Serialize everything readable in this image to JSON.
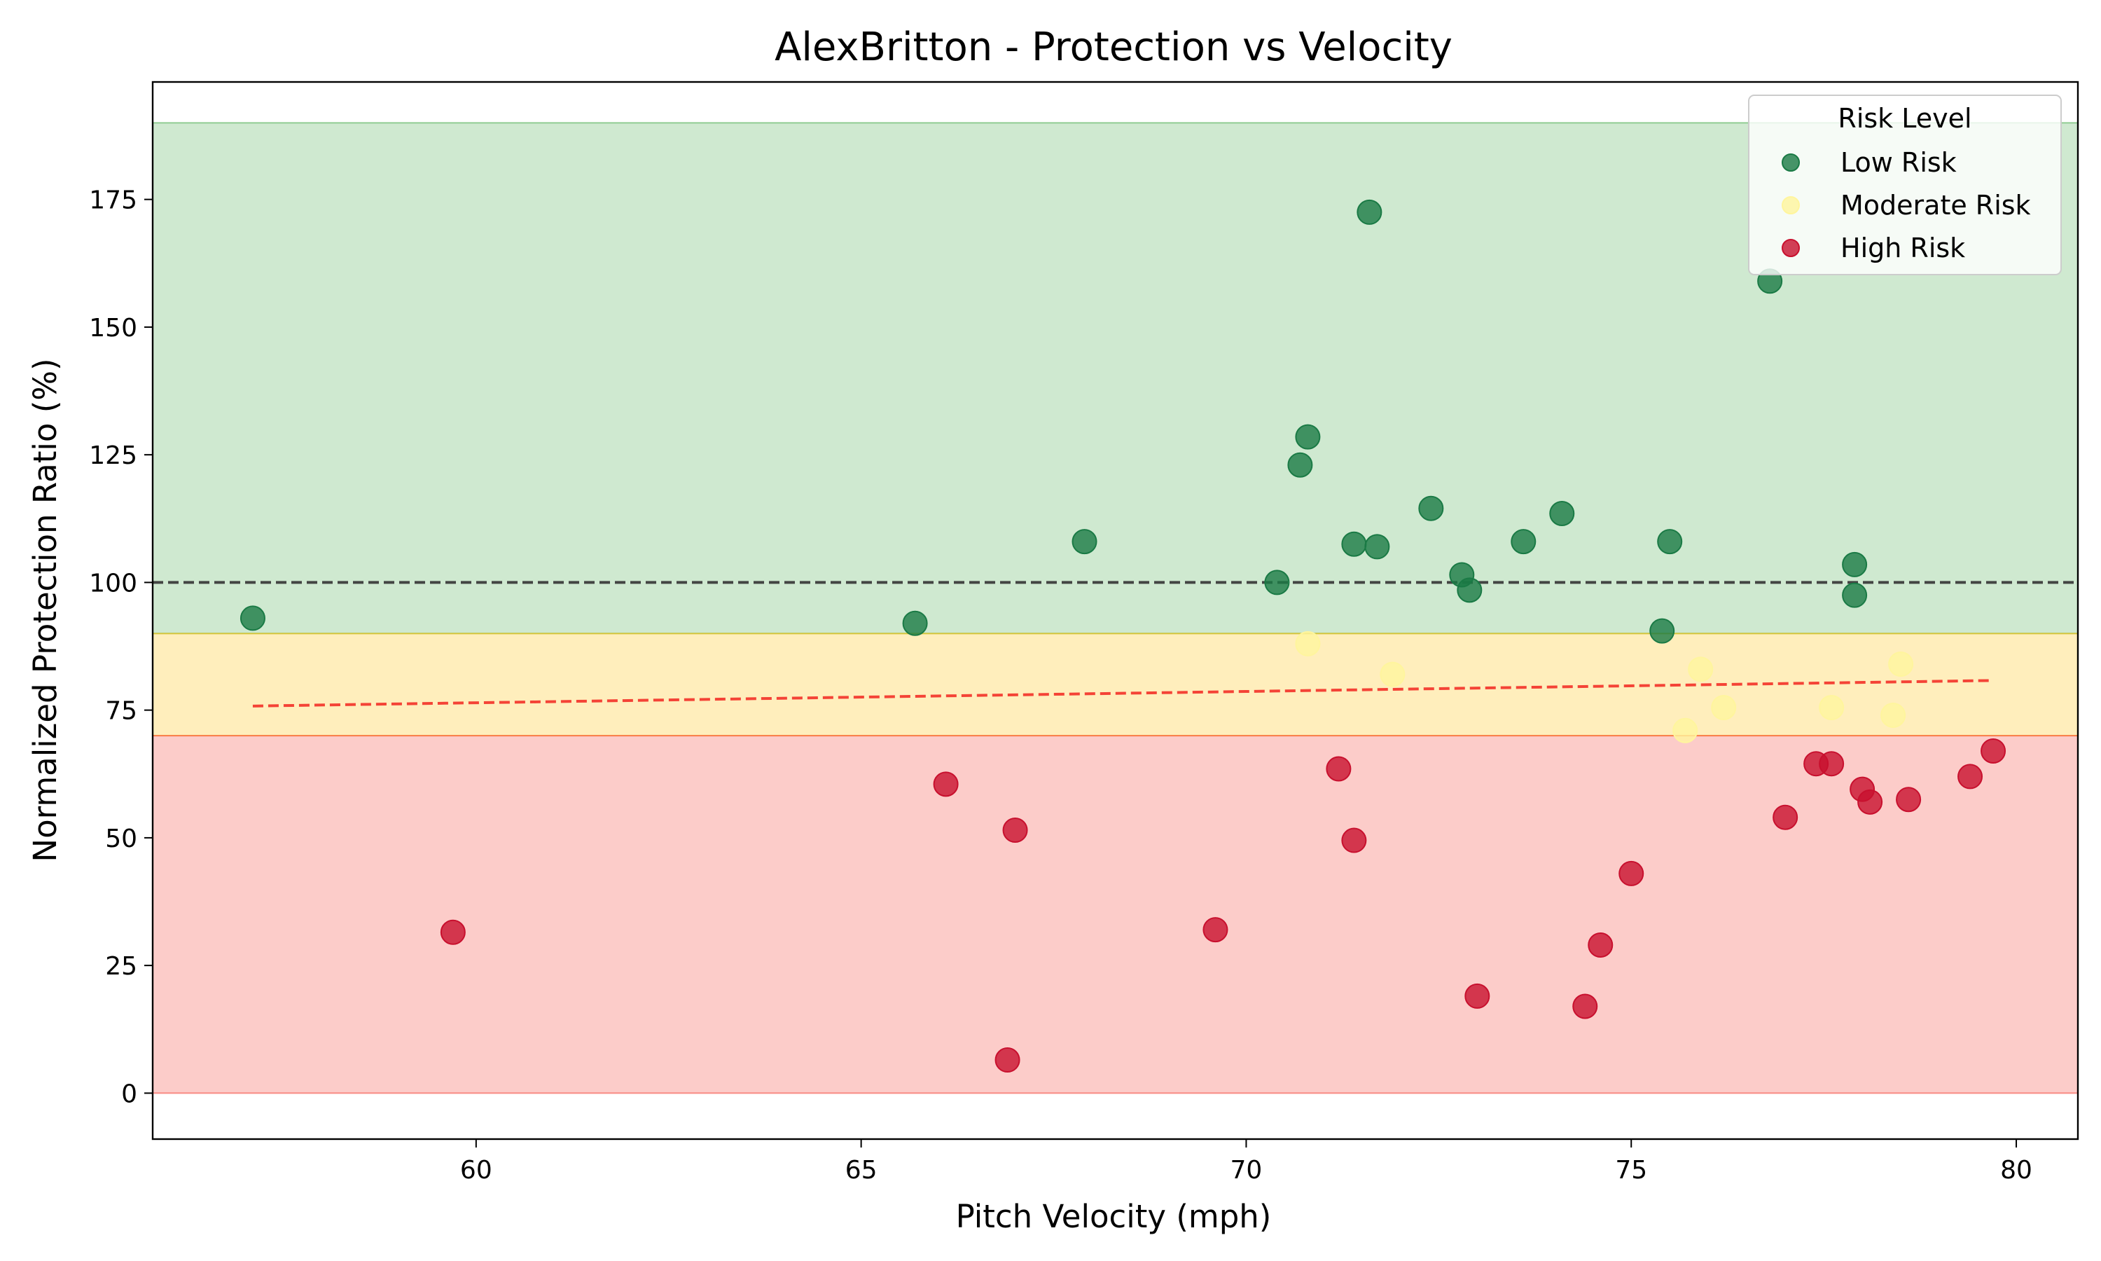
{
  "chart_data": {
    "type": "scatter",
    "title": "AlexBritton - Protection vs Velocity",
    "xlabel": "Pitch Velocity (mph)",
    "ylabel": "Normalized Protection Ratio (%)",
    "xlim": [
      55.8,
      80.8
    ],
    "ylim": [
      -9,
      198
    ],
    "xticks": [
      60,
      65,
      70,
      75,
      80
    ],
    "yticks": [
      0,
      25,
      50,
      75,
      100,
      125,
      150,
      175
    ],
    "grid": false,
    "legend": {
      "title": "Risk Level",
      "position": "top-right"
    },
    "bands": [
      {
        "label": "Low Risk",
        "y0": 90,
        "y1": 190,
        "color": "#4caf50"
      },
      {
        "label": "Moderate Risk",
        "y0": 70,
        "y1": 90,
        "color": "#ffc107"
      },
      {
        "label": "High Risk",
        "y0": 0,
        "y1": 70,
        "color": "#f44336"
      }
    ],
    "reference_line": {
      "y": 100,
      "style": "dashed",
      "color": "#333333"
    },
    "trend_line": {
      "x": [
        57.1,
        79.7
      ],
      "y": [
        75.8,
        80.8
      ],
      "style": "dashed",
      "color": "#f44336"
    },
    "series": [
      {
        "name": "Low Risk",
        "color": "#1a7a45",
        "points": [
          [
            57.1,
            93
          ],
          [
            65.7,
            92
          ],
          [
            67.9,
            108
          ],
          [
            70.4,
            100
          ],
          [
            70.7,
            123
          ],
          [
            70.8,
            128.5
          ],
          [
            71.4,
            107.5
          ],
          [
            71.6,
            172.5
          ],
          [
            71.7,
            107
          ],
          [
            72.4,
            114.5
          ],
          [
            72.8,
            101.5
          ],
          [
            72.9,
            98.5
          ],
          [
            73.6,
            108
          ],
          [
            74.1,
            113.5
          ],
          [
            75.4,
            90.5
          ],
          [
            75.5,
            108
          ],
          [
            76.8,
            159
          ],
          [
            77.9,
            103.5
          ],
          [
            77.9,
            97.5
          ]
        ]
      },
      {
        "name": "Moderate Risk",
        "color": "#fff59d",
        "points": [
          [
            70.8,
            88
          ],
          [
            71.9,
            82
          ],
          [
            75.7,
            71
          ],
          [
            75.9,
            83
          ],
          [
            76.2,
            75.5
          ],
          [
            77.6,
            75.5
          ],
          [
            78.4,
            74
          ],
          [
            78.5,
            84
          ]
        ]
      },
      {
        "name": "High Risk",
        "color": "#c8102e",
        "points": [
          [
            59.7,
            31.5
          ],
          [
            66.1,
            60.5
          ],
          [
            66.9,
            6.5
          ],
          [
            67.0,
            51.5
          ],
          [
            69.6,
            32
          ],
          [
            71.2,
            63.5
          ],
          [
            71.4,
            49.5
          ],
          [
            73.0,
            19
          ],
          [
            74.4,
            17
          ],
          [
            74.6,
            29
          ],
          [
            75.0,
            43
          ],
          [
            77.0,
            54
          ],
          [
            77.4,
            64.5
          ],
          [
            77.6,
            64.5
          ],
          [
            78.0,
            59.5
          ],
          [
            78.1,
            57
          ],
          [
            78.6,
            57.5
          ],
          [
            79.4,
            62
          ],
          [
            79.7,
            67
          ]
        ]
      }
    ]
  }
}
